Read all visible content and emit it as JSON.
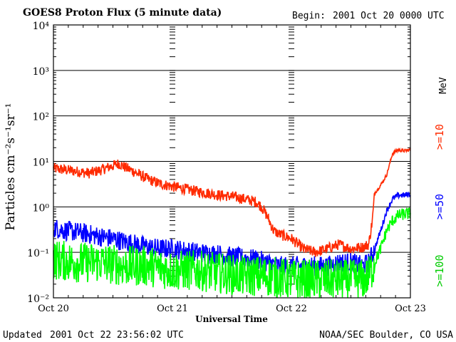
{
  "chart_data": {
    "type": "line",
    "title": "GOES8 Proton Flux (5 minute data)",
    "begin_label": "Begin:",
    "begin_value": "2001 Oct 20 0000 UTC",
    "ylabel": "Particles cm⁻²s⁻¹sr⁻¹",
    "xlabel": "Universal Time",
    "yscale": "log",
    "ylim": [
      0.01,
      10000
    ],
    "xlim": [
      0,
      3
    ],
    "y_ticks": [
      {
        "value": 0.01,
        "label": "10⁻²"
      },
      {
        "value": 0.1,
        "label": "10⁻¹"
      },
      {
        "value": 1,
        "label": "10⁰"
      },
      {
        "value": 10,
        "label": "10¹"
      },
      {
        "value": 100,
        "label": "10²"
      },
      {
        "value": 1000,
        "label": "10³"
      },
      {
        "value": 10000,
        "label": "10⁴"
      }
    ],
    "x_ticks": [
      {
        "value": 0,
        "label": "Oct 20"
      },
      {
        "value": 1,
        "label": "Oct 21"
      },
      {
        "value": 2,
        "label": "Oct 22"
      },
      {
        "value": 3,
        "label": "Oct 23"
      }
    ],
    "unit_label": "MeV",
    "series": [
      {
        "name": ">=10",
        "color": "#ff2a00",
        "points": [
          [
            0,
            7
          ],
          [
            0.1,
            6.5
          ],
          [
            0.2,
            6
          ],
          [
            0.3,
            5.5
          ],
          [
            0.4,
            6.5
          ],
          [
            0.5,
            8
          ],
          [
            0.55,
            9
          ],
          [
            0.6,
            7.5
          ],
          [
            0.7,
            5.5
          ],
          [
            0.8,
            4
          ],
          [
            0.9,
            3.2
          ],
          [
            1.0,
            2.8
          ],
          [
            1.1,
            2.5
          ],
          [
            1.2,
            2.2
          ],
          [
            1.3,
            2
          ],
          [
            1.4,
            1.8
          ],
          [
            1.5,
            1.7
          ],
          [
            1.6,
            1.5
          ],
          [
            1.7,
            1.3
          ],
          [
            1.75,
            1.0
          ],
          [
            1.8,
            0.6
          ],
          [
            1.85,
            0.3
          ],
          [
            1.9,
            0.25
          ],
          [
            2.0,
            0.2
          ],
          [
            2.1,
            0.12
          ],
          [
            2.2,
            0.1
          ],
          [
            2.3,
            0.12
          ],
          [
            2.4,
            0.15
          ],
          [
            2.5,
            0.12
          ],
          [
            2.6,
            0.13
          ],
          [
            2.65,
            0.15
          ],
          [
            2.68,
            0.5
          ],
          [
            2.7,
            2
          ],
          [
            2.75,
            3
          ],
          [
            2.8,
            5
          ],
          [
            2.85,
            15
          ],
          [
            2.9,
            18
          ],
          [
            2.95,
            17
          ],
          [
            3.0,
            18
          ]
        ]
      },
      {
        "name": ">=50",
        "color": "#0000ff",
        "points": [
          [
            0,
            0.35
          ],
          [
            0.1,
            0.3
          ],
          [
            0.2,
            0.28
          ],
          [
            0.3,
            0.25
          ],
          [
            0.4,
            0.22
          ],
          [
            0.5,
            0.2
          ],
          [
            0.6,
            0.17
          ],
          [
            0.7,
            0.15
          ],
          [
            0.8,
            0.13
          ],
          [
            0.9,
            0.12
          ],
          [
            1.0,
            0.12
          ],
          [
            1.1,
            0.11
          ],
          [
            1.2,
            0.1
          ],
          [
            1.3,
            0.095
          ],
          [
            1.4,
            0.09
          ],
          [
            1.5,
            0.08
          ],
          [
            1.6,
            0.075
          ],
          [
            1.7,
            0.07
          ],
          [
            1.8,
            0.06
          ],
          [
            1.9,
            0.05
          ],
          [
            2.0,
            0.05
          ],
          [
            2.1,
            0.05
          ],
          [
            2.2,
            0.05
          ],
          [
            2.3,
            0.05
          ],
          [
            2.4,
            0.06
          ],
          [
            2.5,
            0.06
          ],
          [
            2.6,
            0.05
          ],
          [
            2.65,
            0.06
          ],
          [
            2.7,
            0.12
          ],
          [
            2.75,
            0.3
          ],
          [
            2.8,
            0.8
          ],
          [
            2.85,
            1.5
          ],
          [
            2.9,
            1.8
          ],
          [
            2.95,
            1.8
          ],
          [
            3.0,
            1.9
          ]
        ]
      },
      {
        "name": ">=100",
        "color": "#00ff00",
        "points": [
          [
            0,
            0.07
          ],
          [
            0.2,
            0.06
          ],
          [
            0.4,
            0.06
          ],
          [
            0.6,
            0.05
          ],
          [
            0.8,
            0.05
          ],
          [
            1.0,
            0.04
          ],
          [
            1.2,
            0.04
          ],
          [
            1.4,
            0.035
          ],
          [
            1.6,
            0.03
          ],
          [
            1.8,
            0.03
          ],
          [
            2.0,
            0.025
          ],
          [
            2.2,
            0.025
          ],
          [
            2.4,
            0.025
          ],
          [
            2.6,
            0.025
          ],
          [
            2.65,
            0.03
          ],
          [
            2.7,
            0.06
          ],
          [
            2.75,
            0.12
          ],
          [
            2.8,
            0.3
          ],
          [
            2.85,
            0.5
          ],
          [
            2.9,
            0.65
          ],
          [
            2.95,
            0.7
          ],
          [
            3.0,
            0.7
          ]
        ]
      }
    ]
  },
  "footer": {
    "updated_label": "Updated",
    "updated_value": "2001 Oct 22 23:56:02 UTC",
    "credit": "NOAA/SEC Boulder, CO USA"
  }
}
